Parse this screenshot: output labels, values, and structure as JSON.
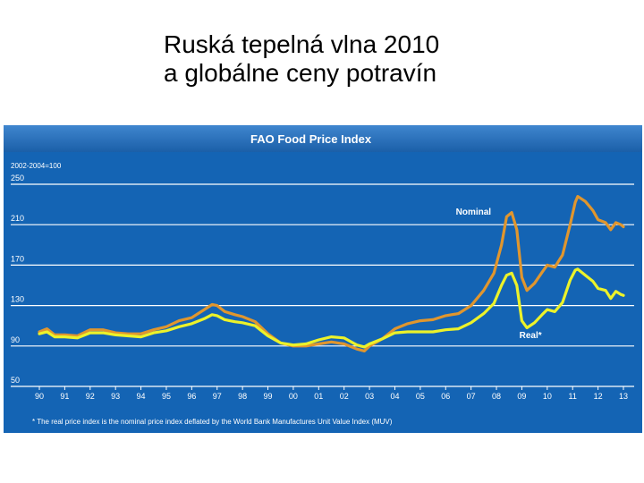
{
  "slide": {
    "title_line1": "Ruská tepelná vlna 2010",
    "title_line2": "a globálne ceny potravín"
  },
  "colors": {
    "panel": "#1464b4",
    "header": "#2f78c4",
    "gridline": "#ffffff",
    "nominal": "#e0962e",
    "real": "#ecf22a",
    "text": "#ffffff"
  },
  "chart_data": {
    "type": "line",
    "title": "FAO Food Price Index",
    "base_label": "2002-2004=100",
    "ylim": [
      50,
      250
    ],
    "y_ticks": [
      50,
      90,
      130,
      170,
      210,
      250
    ],
    "x_range": [
      1990,
      2013
    ],
    "x_tick_labels": [
      "90",
      "91",
      "92",
      "93",
      "94",
      "95",
      "96",
      "97",
      "98",
      "99",
      "00",
      "01",
      "02",
      "03",
      "04",
      "05",
      "06",
      "07",
      "08",
      "09",
      "10",
      "11",
      "12",
      "13"
    ],
    "grid": true,
    "footnote": "* The real price index is the nominal price index deflated by the World Bank Manufactures Unit Value Index (MUV)",
    "series": [
      {
        "name": "Nominal",
        "color": "#e0962e",
        "points": [
          [
            1990.0,
            104
          ],
          [
            1990.3,
            107
          ],
          [
            1990.6,
            101
          ],
          [
            1991.0,
            101
          ],
          [
            1991.5,
            100
          ],
          [
            1992.0,
            106
          ],
          [
            1992.5,
            106
          ],
          [
            1993.0,
            103
          ],
          [
            1993.5,
            102
          ],
          [
            1994.0,
            102
          ],
          [
            1994.5,
            106
          ],
          [
            1995.0,
            109
          ],
          [
            1995.5,
            115
          ],
          [
            1996.0,
            118
          ],
          [
            1996.5,
            126
          ],
          [
            1996.8,
            131
          ],
          [
            1997.0,
            130
          ],
          [
            1997.3,
            124
          ],
          [
            1997.7,
            121
          ],
          [
            1998.0,
            119
          ],
          [
            1998.5,
            114
          ],
          [
            1999.0,
            102
          ],
          [
            1999.5,
            93
          ],
          [
            2000.0,
            90
          ],
          [
            2000.5,
            90
          ],
          [
            2001.0,
            92
          ],
          [
            2001.5,
            94
          ],
          [
            2002.0,
            92
          ],
          [
            2002.5,
            87
          ],
          [
            2002.8,
            85
          ],
          [
            2003.0,
            90
          ],
          [
            2003.5,
            97
          ],
          [
            2004.0,
            107
          ],
          [
            2004.5,
            112
          ],
          [
            2005.0,
            115
          ],
          [
            2005.5,
            116
          ],
          [
            2006.0,
            120
          ],
          [
            2006.5,
            122
          ],
          [
            2007.0,
            130
          ],
          [
            2007.5,
            145
          ],
          [
            2007.9,
            162
          ],
          [
            2008.2,
            190
          ],
          [
            2008.4,
            218
          ],
          [
            2008.6,
            222
          ],
          [
            2008.8,
            205
          ],
          [
            2009.0,
            158
          ],
          [
            2009.2,
            145
          ],
          [
            2009.5,
            152
          ],
          [
            2009.8,
            163
          ],
          [
            2010.0,
            170
          ],
          [
            2010.3,
            168
          ],
          [
            2010.6,
            180
          ],
          [
            2010.9,
            210
          ],
          [
            2011.1,
            232
          ],
          [
            2011.2,
            238
          ],
          [
            2011.5,
            233
          ],
          [
            2011.8,
            224
          ],
          [
            2012.0,
            215
          ],
          [
            2012.3,
            212
          ],
          [
            2012.5,
            205
          ],
          [
            2012.7,
            212
          ],
          [
            2012.9,
            210
          ],
          [
            2013.0,
            208
          ]
        ]
      },
      {
        "name": "Real*",
        "color": "#ecf22a",
        "points": [
          [
            1990.0,
            102
          ],
          [
            1990.3,
            104
          ],
          [
            1990.6,
            99
          ],
          [
            1991.0,
            99
          ],
          [
            1991.5,
            98
          ],
          [
            1992.0,
            103
          ],
          [
            1992.5,
            103
          ],
          [
            1993.0,
            101
          ],
          [
            1993.5,
            100
          ],
          [
            1994.0,
            99
          ],
          [
            1994.5,
            103
          ],
          [
            1995.0,
            105
          ],
          [
            1995.5,
            109
          ],
          [
            1996.0,
            112
          ],
          [
            1996.5,
            117
          ],
          [
            1996.8,
            121
          ],
          [
            1997.0,
            120
          ],
          [
            1997.3,
            116
          ],
          [
            1997.7,
            114
          ],
          [
            1998.0,
            113
          ],
          [
            1998.5,
            110
          ],
          [
            1999.0,
            100
          ],
          [
            1999.5,
            93
          ],
          [
            2000.0,
            91
          ],
          [
            2000.5,
            92
          ],
          [
            2001.0,
            96
          ],
          [
            2001.5,
            99
          ],
          [
            2002.0,
            98
          ],
          [
            2002.5,
            91
          ],
          [
            2002.8,
            89
          ],
          [
            2003.0,
            92
          ],
          [
            2003.5,
            97
          ],
          [
            2004.0,
            103
          ],
          [
            2004.5,
            104
          ],
          [
            2005.0,
            104
          ],
          [
            2005.5,
            104
          ],
          [
            2006.0,
            106
          ],
          [
            2006.5,
            107
          ],
          [
            2007.0,
            113
          ],
          [
            2007.5,
            122
          ],
          [
            2007.9,
            132
          ],
          [
            2008.2,
            150
          ],
          [
            2008.4,
            160
          ],
          [
            2008.6,
            162
          ],
          [
            2008.8,
            150
          ],
          [
            2009.0,
            115
          ],
          [
            2009.2,
            108
          ],
          [
            2009.5,
            113
          ],
          [
            2009.8,
            121
          ],
          [
            2010.0,
            126
          ],
          [
            2010.3,
            124
          ],
          [
            2010.6,
            133
          ],
          [
            2010.9,
            155
          ],
          [
            2011.1,
            165
          ],
          [
            2011.2,
            166
          ],
          [
            2011.5,
            160
          ],
          [
            2011.8,
            154
          ],
          [
            2012.0,
            147
          ],
          [
            2012.3,
            145
          ],
          [
            2012.5,
            137
          ],
          [
            2012.7,
            144
          ],
          [
            2012.9,
            141
          ],
          [
            2013.0,
            140
          ]
        ]
      }
    ],
    "annotations": [
      {
        "text": "Nominal",
        "x": 2006.4,
        "y": 220,
        "color": "#ffffff"
      },
      {
        "text": "Real*",
        "x": 2008.9,
        "y": 98,
        "color": "#ffffff"
      }
    ]
  }
}
